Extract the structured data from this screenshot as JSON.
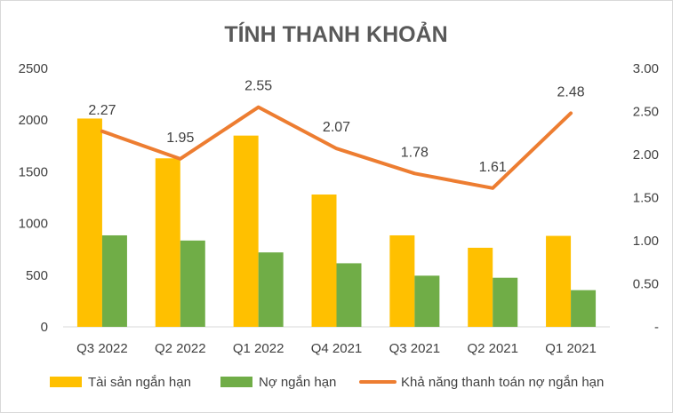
{
  "chart_data": {
    "type": "bar",
    "title": "TÍNH THANH KHOẢN",
    "categories": [
      "Q3 2022",
      "Q2 2022",
      "Q1 2022",
      "Q4 2021",
      "Q3 2021",
      "Q2 2021",
      "Q1 2021"
    ],
    "series": [
      {
        "name": "Tài sản ngắn hạn",
        "type": "bar",
        "axis": "left",
        "color": "#FFC000",
        "values": [
          2015,
          1630,
          1850,
          1280,
          885,
          765,
          880
        ]
      },
      {
        "name": "Nợ ngắn hạn",
        "type": "bar",
        "axis": "left",
        "color": "#70AD47",
        "values": [
          885,
          835,
          720,
          615,
          495,
          475,
          355
        ]
      },
      {
        "name": "Khả năng thanh toán nợ ngắn hạn",
        "type": "line",
        "axis": "right",
        "color": "#ED7D31",
        "values": [
          2.27,
          1.95,
          2.55,
          2.07,
          1.78,
          1.61,
          2.48
        ],
        "labels": [
          "2.27",
          "1.95",
          "2.55",
          "2.07",
          "1.78",
          "1.61",
          "2.48"
        ]
      }
    ],
    "left_axis": {
      "ylim": [
        0,
        2500
      ],
      "ticks": [
        "0",
        "500",
        "1000",
        "1500",
        "2000",
        "2500"
      ]
    },
    "right_axis": {
      "ylim": [
        0,
        3.0
      ],
      "ticks": [
        "-",
        "0.50",
        "1.00",
        "1.50",
        "2.00",
        "2.50",
        "3.00"
      ]
    },
    "grid": false,
    "legend_position": "bottom"
  }
}
